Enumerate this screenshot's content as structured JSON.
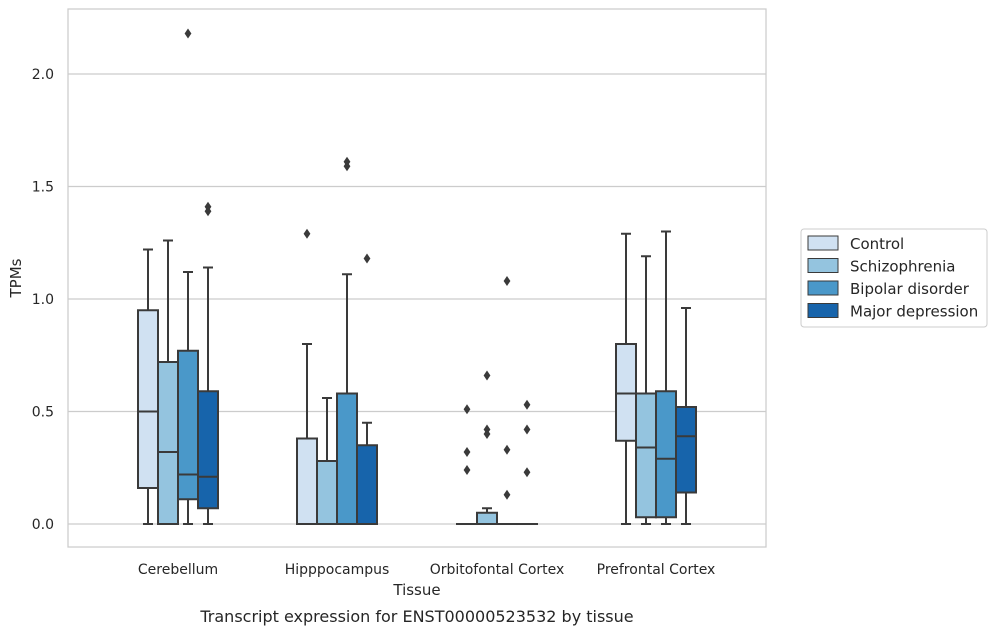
{
  "chart_data": {
    "type": "box",
    "xlabel": "Tissue",
    "ylabel": "TPMs",
    "caption": "Transcript expression for ENST00000523532 by tissue",
    "ylim": [
      -0.1,
      2.3
    ],
    "yticks": [
      0.0,
      0.5,
      1.0,
      1.5,
      2.0
    ],
    "ytick_labels": [
      "0.0",
      "0.5",
      "1.0",
      "1.5",
      "2.0"
    ],
    "grid": "horizontal",
    "legend_position": "right",
    "categories": [
      "Cerebellum",
      "Hipppocampus",
      "Orbitofontal Cortex",
      "Prefrontal Cortex"
    ],
    "series": [
      {
        "name": "Control",
        "color": "#d0e1f2",
        "boxes": [
          {
            "whislo": 0.0,
            "q1": 0.16,
            "med": 0.5,
            "q3": 0.95,
            "whishi": 1.22,
            "fliers": []
          },
          {
            "whislo": 0.0,
            "q1": 0.0,
            "med": 0.0,
            "q3": 0.38,
            "whishi": 0.8,
            "fliers": [
              1.29
            ]
          },
          {
            "whislo": 0.0,
            "q1": 0.0,
            "med": 0.0,
            "q3": 0.0,
            "whishi": 0.0,
            "fliers": [
              0.24,
              0.32,
              0.51
            ]
          },
          {
            "whislo": 0.0,
            "q1": 0.37,
            "med": 0.58,
            "q3": 0.8,
            "whishi": 1.29,
            "fliers": []
          }
        ]
      },
      {
        "name": "Schizophrenia",
        "color": "#94c4df",
        "boxes": [
          {
            "whislo": 0.0,
            "q1": 0.0,
            "med": 0.32,
            "q3": 0.72,
            "whishi": 1.26,
            "fliers": []
          },
          {
            "whislo": 0.0,
            "q1": 0.0,
            "med": 0.0,
            "q3": 0.28,
            "whishi": 0.56,
            "fliers": []
          },
          {
            "whislo": 0.0,
            "q1": 0.0,
            "med": 0.0,
            "q3": 0.05,
            "whishi": 0.07,
            "fliers": [
              0.4,
              0.42,
              0.66
            ]
          },
          {
            "whislo": 0.0,
            "q1": 0.03,
            "med": 0.34,
            "q3": 0.58,
            "whishi": 1.19,
            "fliers": []
          }
        ]
      },
      {
        "name": "Bipolar disorder",
        "color": "#4a98c9",
        "boxes": [
          {
            "whislo": 0.0,
            "q1": 0.11,
            "med": 0.22,
            "q3": 0.77,
            "whishi": 1.12,
            "fliers": [
              2.18
            ]
          },
          {
            "whislo": 0.0,
            "q1": 0.0,
            "med": 0.0,
            "q3": 0.58,
            "whishi": 1.11,
            "fliers": [
              1.59,
              1.61
            ]
          },
          {
            "whislo": 0.0,
            "q1": 0.0,
            "med": 0.0,
            "q3": 0.0,
            "whishi": 0.0,
            "fliers": [
              0.13,
              0.33,
              1.08
            ]
          },
          {
            "whislo": 0.0,
            "q1": 0.03,
            "med": 0.29,
            "q3": 0.59,
            "whishi": 1.3,
            "fliers": []
          }
        ]
      },
      {
        "name": "Major depression",
        "color": "#1764ab",
        "boxes": [
          {
            "whislo": 0.0,
            "q1": 0.07,
            "med": 0.21,
            "q3": 0.59,
            "whishi": 1.14,
            "fliers": [
              1.39,
              1.41
            ]
          },
          {
            "whislo": 0.0,
            "q1": 0.0,
            "med": 0.0,
            "q3": 0.35,
            "whishi": 0.45,
            "fliers": [
              1.18
            ]
          },
          {
            "whislo": 0.0,
            "q1": 0.0,
            "med": 0.0,
            "q3": 0.0,
            "whishi": 0.0,
            "fliers": [
              0.23,
              0.42,
              0.53
            ]
          },
          {
            "whislo": 0.0,
            "q1": 0.14,
            "med": 0.39,
            "q3": 0.52,
            "whishi": 0.96,
            "fliers": []
          }
        ]
      }
    ]
  }
}
